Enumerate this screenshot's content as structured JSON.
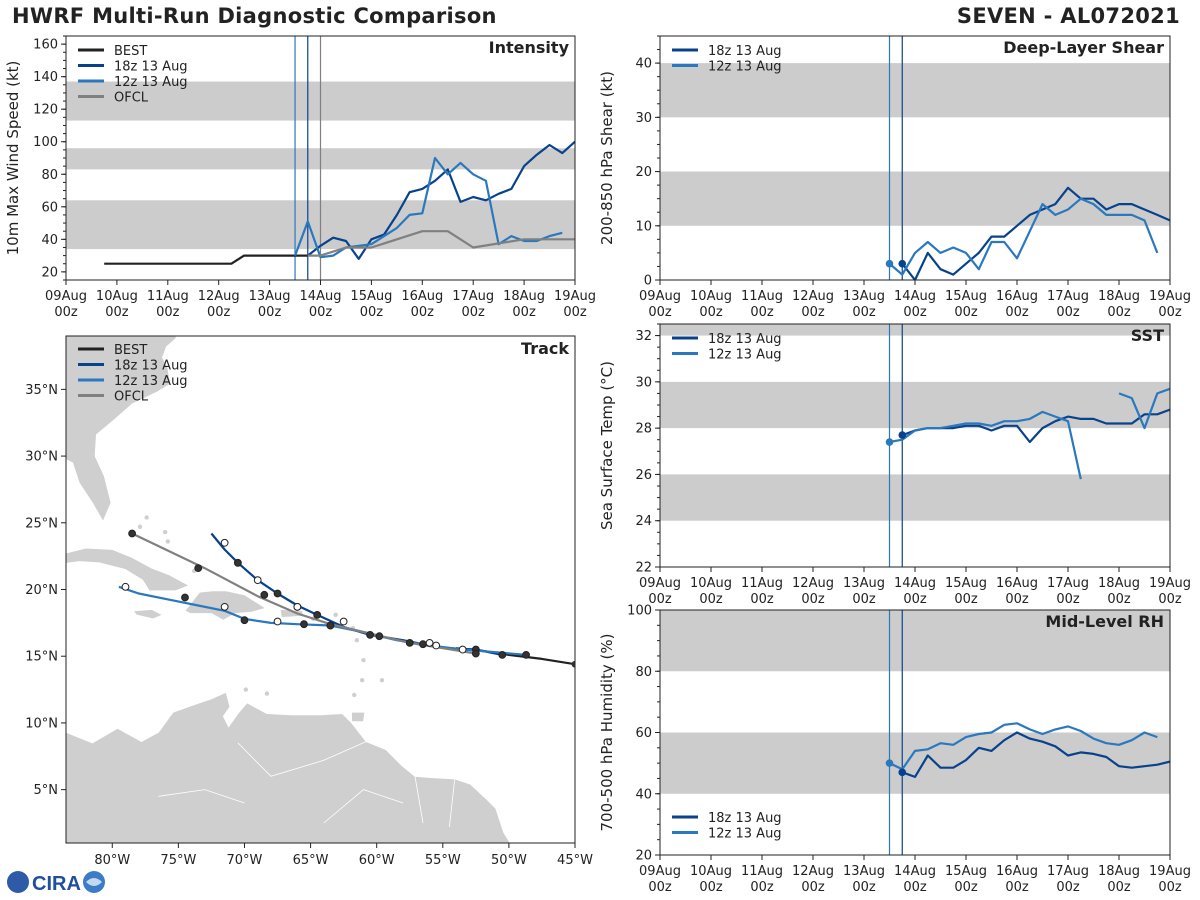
{
  "header": {
    "left_title": "HWRF Multi-Run Diagnostic Comparison",
    "right_title": "SEVEN - AL072021"
  },
  "logo": {
    "text": "CIRA"
  },
  "colors": {
    "best": "#222222",
    "run18z": "#08428d",
    "run12z": "#2a78be",
    "ofcl": "#808080",
    "band": "#cccccc",
    "land": "#cfcfcf"
  },
  "time_axis": {
    "ticks": [
      "09Aug",
      "10Aug",
      "11Aug",
      "12Aug",
      "13Aug",
      "14Aug",
      "15Aug",
      "16Aug",
      "17Aug",
      "18Aug",
      "19Aug"
    ],
    "sub_label": "00z",
    "range_days": [
      9,
      19
    ]
  },
  "init_lines": [
    13.5,
    13.75
  ],
  "chart_data": [
    {
      "id": "intensity",
      "type": "line",
      "title": "Intensity",
      "ylabel": "10m Max Wind Speed (kt)",
      "ylim": [
        15,
        165
      ],
      "yticks": [
        20,
        40,
        60,
        80,
        100,
        120,
        140,
        160
      ],
      "bands": [
        [
          34,
          64
        ],
        [
          83,
          96
        ],
        [
          113,
          137
        ]
      ],
      "extra_vline": 14.0,
      "legend": [
        "BEST",
        "18z 13 Aug",
        "12z 13 Aug",
        "OFCL"
      ],
      "series": [
        {
          "name": "BEST",
          "key": "best",
          "x": [
            9.75,
            12.25,
            12.5,
            13.75
          ],
          "y": [
            25,
            25,
            30,
            30
          ]
        },
        {
          "name": "18z 13 Aug",
          "key": "run18z",
          "x": [
            13.75,
            14.0,
            14.25,
            14.5,
            14.75,
            15.0,
            15.25,
            15.5,
            15.75,
            16.0,
            16.25,
            16.5,
            16.75,
            17.0,
            17.25,
            17.5,
            17.75,
            18.0,
            18.25,
            18.5,
            18.75,
            19.0
          ],
          "y": [
            30,
            36,
            41,
            39,
            28,
            40,
            43,
            55,
            69,
            71,
            76,
            83,
            63,
            66,
            64,
            68,
            71,
            85,
            92,
            98,
            93,
            100
          ]
        },
        {
          "name": "12z 13 Aug",
          "key": "run12z",
          "x": [
            13.5,
            13.75,
            14.0,
            14.25,
            14.5,
            14.75,
            15.0,
            15.25,
            15.5,
            15.75,
            16.0,
            16.25,
            16.5,
            16.75,
            17.0,
            17.25,
            17.5,
            17.75,
            18.0,
            18.25,
            18.5,
            18.75
          ],
          "y": [
            30,
            51,
            29,
            30,
            35,
            36,
            37,
            42,
            47,
            55,
            56,
            90,
            80,
            87,
            80,
            76,
            37,
            42,
            39,
            39,
            42,
            44
          ]
        },
        {
          "name": "OFCL",
          "key": "ofcl",
          "x": [
            13.75,
            14.0,
            14.5,
            15.0,
            16.0,
            16.5,
            17.0,
            18.0,
            19.0
          ],
          "y": [
            30,
            30,
            35,
            35,
            45,
            45,
            35,
            40,
            40
          ]
        }
      ]
    },
    {
      "id": "shear",
      "type": "line",
      "title": "Deep-Layer Shear",
      "ylabel": "200-850 hPa Shear (kt)",
      "ylim": [
        0,
        45
      ],
      "yticks": [
        0,
        10,
        20,
        30,
        40
      ],
      "bands": [
        [
          10,
          20
        ],
        [
          30,
          40
        ]
      ],
      "legend": [
        "18z 13 Aug",
        "12z 13 Aug"
      ],
      "series": [
        {
          "name": "18z 13 Aug",
          "key": "run18z",
          "x": [
            13.75,
            14.0,
            14.25,
            14.5,
            14.75,
            15.0,
            15.25,
            15.5,
            15.75,
            16.0,
            16.25,
            16.5,
            16.75,
            17.0,
            17.25,
            17.5,
            17.75,
            18.0,
            18.25,
            18.5,
            18.75,
            19.0
          ],
          "y": [
            3,
            0,
            5,
            2,
            1,
            3,
            5,
            8,
            8,
            10,
            12,
            13,
            14,
            17,
            15,
            15,
            13,
            14,
            14,
            13,
            12,
            11
          ]
        },
        {
          "name": "12z 13 Aug",
          "key": "run12z",
          "x": [
            13.5,
            13.75,
            14.0,
            14.25,
            14.5,
            14.75,
            15.0,
            15.25,
            15.5,
            15.75,
            16.0,
            16.25,
            16.5,
            16.75,
            17.0,
            17.25,
            17.5,
            17.75,
            18.0,
            18.25,
            18.5,
            18.75
          ],
          "y": [
            3,
            1,
            5,
            7,
            5,
            6,
            5,
            2,
            7,
            7,
            4,
            9,
            14,
            12,
            13,
            15,
            14,
            12,
            12,
            12,
            11,
            5
          ]
        }
      ]
    },
    {
      "id": "sst",
      "type": "line",
      "title": "SST",
      "ylabel": "Sea Surface Temp (°C)",
      "ylim": [
        22,
        32.5
      ],
      "yticks": [
        22,
        24,
        26,
        28,
        30,
        32
      ],
      "bands": [
        [
          24,
          26
        ],
        [
          28,
          30
        ],
        [
          32,
          34
        ]
      ],
      "legend": [
        "18z 13 Aug",
        "12z 13 Aug"
      ],
      "series": [
        {
          "name": "18z 13 Aug",
          "key": "run18z",
          "x": [
            13.75,
            14.0,
            14.25,
            14.5,
            14.75,
            15.0,
            15.25,
            15.5,
            15.75,
            16.0,
            16.25,
            16.5,
            16.75,
            17.0,
            17.25,
            17.5,
            17.75,
            18.0,
            18.25,
            18.5,
            18.75,
            19.0
          ],
          "y": [
            27.7,
            27.9,
            28.0,
            28.0,
            28.0,
            28.1,
            28.1,
            27.9,
            28.1,
            28.1,
            27.4,
            28.0,
            28.3,
            28.5,
            28.4,
            28.4,
            28.2,
            28.2,
            28.2,
            28.6,
            28.6,
            28.8
          ]
        },
        {
          "name": "12z 13 Aug",
          "key": "run12z",
          "x": [
            13.5,
            13.75,
            14.0,
            14.25,
            14.5,
            14.75,
            15.0,
            15.25,
            15.5,
            15.75,
            16.0,
            16.25,
            16.5,
            16.75,
            17.0,
            17.25
          ],
          "y": [
            27.4,
            27.5,
            27.9,
            28.0,
            28.0,
            28.1,
            28.2,
            28.2,
            28.1,
            28.3,
            28.3,
            28.4,
            28.7,
            28.5,
            28.3,
            25.8
          ]
        },
        {
          "name": "12z 13 Aug (b)",
          "key": "run12z",
          "x": [
            18.0,
            18.25,
            18.5,
            18.75,
            19.0
          ],
          "y": [
            29.5,
            29.3,
            28.0,
            29.5,
            29.7
          ]
        }
      ]
    },
    {
      "id": "rh",
      "type": "line",
      "title": "Mid-Level RH",
      "ylabel": "700-500 hPa Humidity (%)",
      "ylim": [
        20,
        100
      ],
      "yticks": [
        20,
        40,
        60,
        80,
        100
      ],
      "bands": [
        [
          40,
          60
        ],
        [
          80,
          100
        ]
      ],
      "legend": [
        "18z 13 Aug",
        "12z 13 Aug"
      ],
      "series": [
        {
          "name": "18z 13 Aug",
          "key": "run18z",
          "x": [
            13.75,
            14.0,
            14.25,
            14.5,
            14.75,
            15.0,
            15.25,
            15.5,
            15.75,
            16.0,
            16.25,
            16.5,
            16.75,
            17.0,
            17.25,
            17.5,
            17.75,
            18.0,
            18.25,
            18.5,
            18.75,
            19.0
          ],
          "y": [
            47,
            45.5,
            52.5,
            48.5,
            48.5,
            51,
            55,
            54,
            57.5,
            60,
            58,
            57,
            55.5,
            52.5,
            53.5,
            53,
            52,
            49,
            48.5,
            49,
            49.5,
            50.5
          ]
        },
        {
          "name": "12z 13 Aug",
          "key": "run12z",
          "x": [
            13.5,
            13.75,
            14.0,
            14.25,
            14.5,
            14.75,
            15.0,
            15.25,
            15.5,
            15.75,
            16.0,
            16.25,
            16.5,
            16.75,
            17.0,
            17.25,
            17.5,
            17.75,
            18.0,
            18.25,
            18.5,
            18.75
          ],
          "y": [
            50,
            48,
            54,
            54.5,
            56.5,
            56,
            58.5,
            59.5,
            60,
            62.5,
            63,
            61,
            59.5,
            61,
            62,
            60.5,
            58,
            56.5,
            56,
            57.5,
            60,
            58.5
          ]
        }
      ]
    },
    {
      "id": "track",
      "type": "scatter",
      "title": "Track",
      "legend": [
        "BEST",
        "18z 13 Aug",
        "12z 13 Aug",
        "OFCL"
      ],
      "xlim": [
        -83.5,
        -45
      ],
      "ylim": [
        1,
        39
      ],
      "xticks": [
        -80,
        -75,
        -70,
        -65,
        -60,
        -55,
        -50,
        -45
      ],
      "xtick_labels": [
        "80°W",
        "75°W",
        "70°W",
        "65°W",
        "60°W",
        "55°W",
        "50°W",
        "45°W"
      ],
      "yticks": [
        5,
        10,
        15,
        20,
        25,
        30,
        35
      ],
      "ytick_labels": [
        "5°N",
        "10°N",
        "15°N",
        "20°N",
        "25°N",
        "30°N",
        "35°N"
      ],
      "series": [
        {
          "name": "BEST",
          "key": "best",
          "points": [
            [
              -45.0,
              14.4
            ],
            [
              -47.5,
              14.8
            ],
            [
              -50.0,
              15.1
            ],
            [
              -52.0,
              15.4
            ],
            [
              -54.0,
              15.6
            ]
          ]
        },
        {
          "name": "18z 13 Aug",
          "key": "run18z",
          "points": [
            [
              -50.5,
              15.1
            ],
            [
              -52.5,
              15.5
            ],
            [
              -54.5,
              15.6
            ],
            [
              -56.5,
              15.9
            ],
            [
              -58.0,
              16.2
            ],
            [
              -60.5,
              16.6
            ],
            [
              -62.5,
              17.2
            ],
            [
              -64.5,
              18.1
            ],
            [
              -66.0,
              18.8
            ],
            [
              -67.5,
              19.7
            ],
            [
              -69.0,
              20.7
            ],
            [
              -70.5,
              22.0
            ],
            [
              -71.5,
              23.0
            ],
            [
              -72.5,
              24.2
            ]
          ],
          "markers": [
            [
              -50.5,
              15.1,
              "filled"
            ],
            [
              -52.5,
              15.5,
              "filled"
            ],
            [
              -56.5,
              15.9,
              "filled"
            ],
            [
              -60.5,
              16.6,
              "filled"
            ],
            [
              -64.5,
              18.1,
              "filled"
            ],
            [
              -67.5,
              19.7,
              "filled"
            ],
            [
              -70.5,
              22.0,
              "filled"
            ],
            [
              -72.5,
              24.2,
              "none"
            ],
            [
              -71.5,
              23.5,
              "open"
            ],
            [
              -69.0,
              20.7,
              "open"
            ],
            [
              -66.0,
              18.7,
              "open"
            ],
            [
              -62.5,
              17.6,
              "open"
            ],
            [
              -56.0,
              16.0,
              "open"
            ]
          ]
        },
        {
          "name": "12z 13 Aug",
          "key": "run12z",
          "points": [
            [
              -48.7,
              15.1
            ],
            [
              -51.0,
              15.3
            ],
            [
              -53.5,
              15.5
            ],
            [
              -56.0,
              15.8
            ],
            [
              -58.5,
              16.2
            ],
            [
              -61.0,
              16.8
            ],
            [
              -63.5,
              17.3
            ],
            [
              -66.0,
              17.4
            ],
            [
              -68.0,
              17.5
            ],
            [
              -70.0,
              17.8
            ],
            [
              -71.5,
              18.4
            ],
            [
              -73.5,
              18.8
            ],
            [
              -75.5,
              19.2
            ],
            [
              -78.0,
              19.7
            ],
            [
              -79.5,
              20.2
            ]
          ],
          "markers": [
            [
              -48.7,
              15.1,
              "filled"
            ],
            [
              -59.8,
              16.5,
              "filled"
            ],
            [
              -65.5,
              17.4,
              "filled"
            ],
            [
              -70.0,
              17.7,
              "filled"
            ],
            [
              -74.5,
              19.4,
              "filled"
            ],
            [
              -53.5,
              15.5,
              "open"
            ],
            [
              -63.5,
              17.3,
              "open"
            ],
            [
              -67.5,
              17.6,
              "open"
            ],
            [
              -71.5,
              18.7,
              "open"
            ],
            [
              -79.0,
              20.2,
              "open"
            ]
          ]
        },
        {
          "name": "OFCL",
          "key": "ofcl",
          "points": [
            [
              -52.5,
              15.2
            ],
            [
              -55.0,
              15.6
            ],
            [
              -57.5,
              16.0
            ],
            [
              -60.5,
              16.7
            ],
            [
              -63.5,
              17.4
            ],
            [
              -66.0,
              18.2
            ],
            [
              -69.0,
              19.5
            ],
            [
              -73.0,
              21.6
            ],
            [
              -78.5,
              24.2
            ]
          ],
          "markers": [
            [
              -52.5,
              15.2,
              "filled"
            ],
            [
              -57.5,
              16.0,
              "filled"
            ],
            [
              -63.5,
              17.3,
              "filled"
            ],
            [
              -68.5,
              19.6,
              "filled"
            ],
            [
              -73.5,
              21.6,
              "filled"
            ],
            [
              -78.5,
              24.2,
              "filled"
            ],
            [
              -66.0,
              18.7,
              "open"
            ],
            [
              -55.5,
              15.8,
              "open"
            ]
          ]
        }
      ]
    }
  ]
}
